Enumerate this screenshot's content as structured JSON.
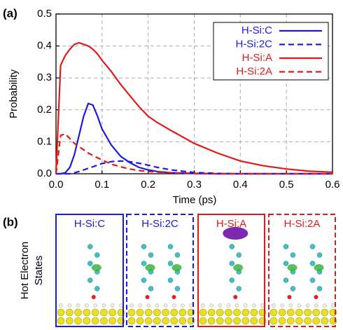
{
  "chart_data": {
    "type": "line",
    "panel_label": "(a)",
    "x_label": "Time (ps)",
    "y_label": "Probability",
    "x": [
      0,
      0.01,
      0.02,
      0.03,
      0.04,
      0.05,
      0.06,
      0.07,
      0.08,
      0.09,
      0.1,
      0.12,
      0.14,
      0.16,
      0.18,
      0.2,
      0.22,
      0.25,
      0.3,
      0.35,
      0.4,
      0.45,
      0.5,
      0.55,
      0.6
    ],
    "series": [
      {
        "name": "H-Si:C",
        "color": "#1a1ae0",
        "dash": false,
        "values": [
          0,
          0,
          0.003,
          0.02,
          0.06,
          0.12,
          0.18,
          0.22,
          0.215,
          0.18,
          0.14,
          0.09,
          0.055,
          0.035,
          0.02,
          0.012,
          0.007,
          0.003,
          0.001,
          0,
          0,
          0,
          0,
          0,
          0
        ]
      },
      {
        "name": "H-Si:2C",
        "color": "#1a1ae0",
        "dash": true,
        "values": [
          0,
          0,
          0,
          0,
          0.003,
          0.007,
          0.012,
          0.017,
          0.022,
          0.027,
          0.032,
          0.038,
          0.04,
          0.038,
          0.033,
          0.027,
          0.02,
          0.012,
          0.004,
          0.001,
          0,
          0,
          0,
          0,
          0
        ]
      },
      {
        "name": "H-Si:A",
        "color": "#e01a1a",
        "dash": false,
        "values": [
          0,
          0.34,
          0.37,
          0.39,
          0.405,
          0.41,
          0.405,
          0.4,
          0.39,
          0.375,
          0.355,
          0.32,
          0.28,
          0.245,
          0.21,
          0.18,
          0.16,
          0.135,
          0.095,
          0.065,
          0.04,
          0.025,
          0.015,
          0.008,
          0.005
        ]
      },
      {
        "name": "H-Si:2A",
        "color": "#e01a1a",
        "dash": true,
        "values": [
          0,
          0.12,
          0.125,
          0.11,
          0.095,
          0.085,
          0.075,
          0.065,
          0.057,
          0.05,
          0.043,
          0.03,
          0.022,
          0.015,
          0.01,
          0.007,
          0.005,
          0.003,
          0.001,
          0,
          0,
          0,
          0,
          0,
          0
        ]
      }
    ],
    "xlim": [
      0,
      0.6
    ],
    "xticks": [
      {
        "value": 0,
        "label": "0.0"
      },
      0.1,
      0.2,
      0.3,
      0.4,
      0.5,
      0.6
    ],
    "ylim": [
      0,
      0.5
    ],
    "yticks": [
      {
        "value": 0,
        "label": "0.0"
      },
      0.1,
      0.2,
      0.3,
      0.4,
      0.5
    ],
    "grid": true,
    "legend": "upper right"
  },
  "panel_b": {
    "label": "(b)",
    "side_label": [
      "Hot Electron",
      "States"
    ],
    "states": [
      {
        "name": "H-Si:C",
        "color": "#1a1ae0",
        "dash": false
      },
      {
        "name": "H-Si:2C",
        "color": "#1a1ae0",
        "dash": true
      },
      {
        "name": "H-Si:A",
        "color": "#e01a1a",
        "dash": false
      },
      {
        "name": "H-Si:2A",
        "color": "#e01a1a",
        "dash": true
      }
    ]
  }
}
